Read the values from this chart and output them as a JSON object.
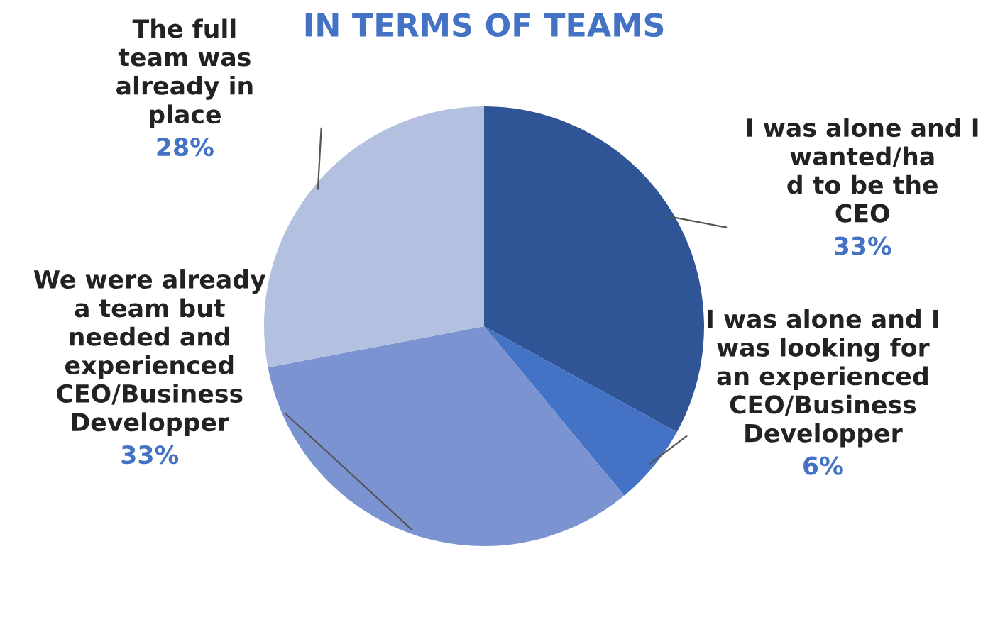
{
  "chart_data": {
    "type": "pie",
    "title": "IN TERMS OF TEAMS",
    "categories": [
      "I was alone and I\nwanted/ha\nd to be the\nCEO",
      "I was alone and I\nwas looking for\nan experienced\nCEO/Business\nDevelopper",
      "We were already\na team but\nneeded and\nexperienced\nCEO/Business\nDevelopper",
      "The full\nteam was\nalready in\nplace"
    ],
    "values": [
      33,
      6,
      33,
      28
    ],
    "value_labels": [
      "33%",
      "6%",
      "33%",
      "28%"
    ],
    "colors": [
      "#2f5597",
      "#4472c4",
      "#7b93d1",
      "#b4c0e0"
    ]
  }
}
